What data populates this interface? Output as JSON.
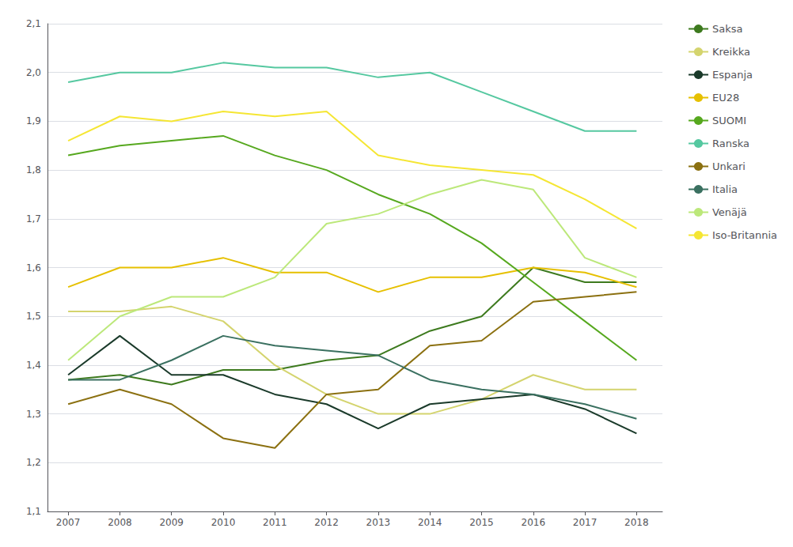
{
  "chart_data": {
    "type": "line",
    "x": [
      2007,
      2008,
      2009,
      2010,
      2011,
      2012,
      2013,
      2014,
      2015,
      2016,
      2017,
      2018
    ],
    "xlim": [
      2006.6,
      2018.5
    ],
    "xticks": [
      2007,
      2008,
      2009,
      2010,
      2011,
      2012,
      2013,
      2014,
      2015,
      2016,
      2017,
      2018
    ],
    "ylim": [
      1.1,
      2.1
    ],
    "yticks": [
      {
        "value": 1.1,
        "label": "1,1"
      },
      {
        "value": 1.2,
        "label": "1,2"
      },
      {
        "value": 1.3,
        "label": "1,3"
      },
      {
        "value": 1.4,
        "label": "1,4"
      },
      {
        "value": 1.5,
        "label": "1,5"
      },
      {
        "value": 1.6,
        "label": "1,6"
      },
      {
        "value": 1.7,
        "label": "1,7"
      },
      {
        "value": 1.8,
        "label": "1,8"
      },
      {
        "value": 1.9,
        "label": "1,9"
      },
      {
        "value": 2.0,
        "label": "2,0"
      },
      {
        "value": 2.1,
        "label": "2,1"
      }
    ],
    "grid": "y",
    "legend": "right",
    "series": [
      {
        "name": "Saksa",
        "color": "#3d7a1e",
        "values": [
          1.37,
          1.38,
          1.36,
          1.39,
          1.39,
          1.41,
          1.42,
          1.47,
          1.5,
          1.6,
          1.57,
          1.57
        ]
      },
      {
        "name": "Kreikka",
        "color": "#d4d46e",
        "values": [
          1.51,
          1.51,
          1.52,
          1.49,
          1.4,
          1.34,
          1.3,
          1.3,
          1.33,
          1.38,
          1.35,
          1.35
        ]
      },
      {
        "name": "Espanja",
        "color": "#1a3a2a",
        "values": [
          1.38,
          1.46,
          1.38,
          1.38,
          1.34,
          1.32,
          1.27,
          1.32,
          1.33,
          1.34,
          1.31,
          1.26
        ]
      },
      {
        "name": "EU28",
        "color": "#e6c000",
        "values": [
          1.56,
          1.6,
          1.6,
          1.62,
          1.59,
          1.59,
          1.55,
          1.58,
          1.58,
          1.6,
          1.59,
          1.56
        ]
      },
      {
        "name": "SUOMI",
        "color": "#56a81e",
        "values": [
          1.83,
          1.85,
          1.86,
          1.87,
          1.83,
          1.8,
          1.75,
          1.71,
          1.65,
          1.57,
          1.49,
          1.41
        ]
      },
      {
        "name": "Ranska",
        "color": "#55c8a0",
        "values": [
          1.98,
          2.0,
          2.0,
          2.02,
          2.01,
          2.01,
          1.99,
          2.0,
          1.96,
          1.92,
          1.88,
          1.88
        ]
      },
      {
        "name": "Unkari",
        "color": "#8b7010",
        "values": [
          1.32,
          1.35,
          1.32,
          1.25,
          1.23,
          1.34,
          1.35,
          1.44,
          1.45,
          1.53,
          1.54,
          1.55
        ]
      },
      {
        "name": "Italia",
        "color": "#3a7060",
        "values": [
          1.37,
          1.37,
          1.41,
          1.46,
          1.44,
          1.43,
          1.42,
          1.37,
          1.35,
          1.34,
          1.32,
          1.29
        ]
      },
      {
        "name": "Venäjä",
        "color": "#bce87a",
        "values": [
          1.41,
          1.5,
          1.54,
          1.54,
          1.58,
          1.69,
          1.71,
          1.75,
          1.78,
          1.76,
          1.62,
          1.58
        ]
      },
      {
        "name": "Iso-Britannia",
        "color": "#f5e633",
        "values": [
          1.86,
          1.91,
          1.9,
          1.92,
          1.91,
          1.92,
          1.83,
          1.81,
          1.8,
          1.79,
          1.74,
          1.68
        ]
      }
    ]
  }
}
